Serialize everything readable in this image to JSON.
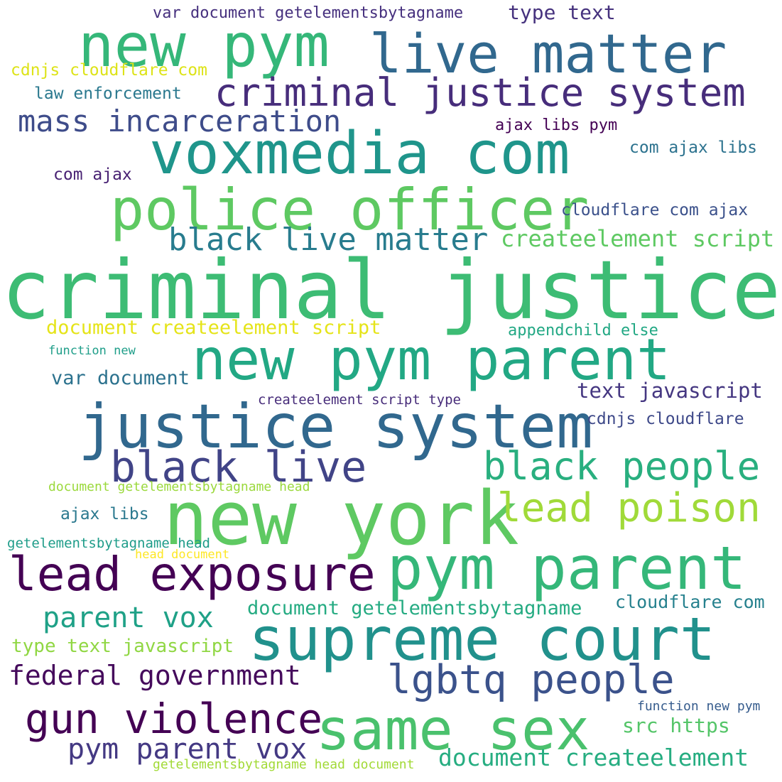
{
  "colors": {
    "background": "#ffffff",
    "palette": [
      "#440154",
      "#472c7a",
      "#3b518b",
      "#2c718e",
      "#21908d",
      "#27ad81",
      "#5cc863",
      "#aadc32",
      "#fde725"
    ]
  },
  "words": [
    {
      "text": "criminal justice",
      "color": "#3dbc74"
    },
    {
      "text": "new york",
      "color": "#5ec962"
    },
    {
      "text": "voxmedia com",
      "color": "#1f958b"
    },
    {
      "text": "police officer",
      "color": "#5ec962"
    },
    {
      "text": "justice system",
      "color": "#31688e"
    },
    {
      "text": "new pym parent",
      "color": "#22a884"
    },
    {
      "text": "supreme court",
      "color": "#21918c"
    },
    {
      "text": "pym parent",
      "color": "#35b779"
    },
    {
      "text": "new pym",
      "color": "#35b779"
    },
    {
      "text": "live matter",
      "color": "#31688e"
    },
    {
      "text": "same sex",
      "color": "#4ac16d"
    },
    {
      "text": "lead exposure",
      "color": "#440154"
    },
    {
      "text": "criminal justice system",
      "color": "#472d7b"
    },
    {
      "text": "black live",
      "color": "#414487"
    },
    {
      "text": "black people",
      "color": "#29af7f"
    },
    {
      "text": "lead poison",
      "color": "#a0da39"
    },
    {
      "text": "lgbtq people",
      "color": "#3b528b"
    },
    {
      "text": "gun violence",
      "color": "#440154"
    },
    {
      "text": "black live matter",
      "color": "#287c8e"
    },
    {
      "text": "mass incarceration",
      "color": "#3e4c8a"
    },
    {
      "text": "federal government",
      "color": "#450a5c"
    },
    {
      "text": "parent vox",
      "color": "#1fa187"
    },
    {
      "text": "pym parent vox",
      "color": "#443983"
    },
    {
      "text": "createelement script",
      "color": "#5ec962"
    },
    {
      "text": "document createelement script",
      "color": "#e5e419"
    },
    {
      "text": "document createelement",
      "color": "#26ad81"
    },
    {
      "text": "document getelementsbytagname",
      "color": "#25ab82"
    },
    {
      "text": "text javascript",
      "color": "#453781"
    },
    {
      "text": "src https",
      "color": "#54c568"
    },
    {
      "text": "type text javascript",
      "color": "#90d743"
    },
    {
      "text": "cloudflare com",
      "color": "#26818e"
    },
    {
      "text": "cloudflare com ajax",
      "color": "#3b518b"
    },
    {
      "text": "com ajax libs",
      "color": "#2c728e"
    },
    {
      "text": "var document getelementsbytagname",
      "color": "#46307e"
    },
    {
      "text": "type text",
      "color": "#46327e"
    },
    {
      "text": "cdnjs cloudflare com",
      "color": "#dde318"
    },
    {
      "text": "law enforcement",
      "color": "#2a788e"
    },
    {
      "text": "ajax libs pym",
      "color": "#440154"
    },
    {
      "text": "com ajax",
      "color": "#482173"
    },
    {
      "text": "appendchild else",
      "color": "#22a884"
    },
    {
      "text": "var document",
      "color": "#2c728e"
    },
    {
      "text": "cdnjs cloudflare",
      "color": "#3e4989"
    },
    {
      "text": "createelement script type",
      "color": "#472c7a"
    },
    {
      "text": "ajax libs",
      "color": "#2a788e"
    },
    {
      "text": "function new",
      "color": "#1f9e89"
    },
    {
      "text": "document getelementsbytagname head",
      "color": "#9bd93c"
    },
    {
      "text": "getelementsbytagname head",
      "color": "#1e9c89"
    },
    {
      "text": "head document",
      "color": "#fde725"
    },
    {
      "text": "function new pym",
      "color": "#365c8d"
    },
    {
      "text": "getelementsbytagname head document",
      "color": "#a2da37"
    }
  ]
}
